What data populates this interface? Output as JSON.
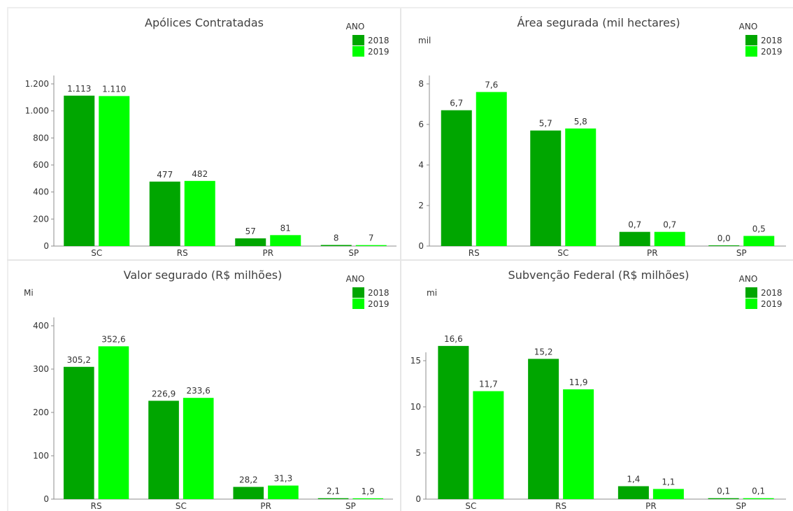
{
  "colors": {
    "y2018": "#00A600",
    "y2019": "#00FF00",
    "axis": "#8c8c8c",
    "text": "#333333"
  },
  "legend": {
    "title": "ANO",
    "items": [
      "2018",
      "2019"
    ]
  },
  "chart_data": [
    {
      "type": "bar",
      "title": "Apólices Contratadas",
      "unit_label": "",
      "categories": [
        "SC",
        "RS",
        "PR",
        "SP"
      ],
      "series": [
        {
          "name": "2018",
          "values": [
            1113,
            477,
            57,
            8
          ],
          "labels": [
            "1.113",
            "477",
            "57",
            "8"
          ]
        },
        {
          "name": "2019",
          "values": [
            1110,
            482,
            81,
            7
          ],
          "labels": [
            "1.110",
            "482",
            "81",
            "7"
          ]
        }
      ],
      "ylim": [
        0,
        1200
      ],
      "yticks": [
        0,
        200,
        400,
        600,
        800,
        1000,
        1200
      ],
      "ytick_labels": [
        "0",
        "200",
        "400",
        "600",
        "800",
        "1.000",
        "1.200"
      ],
      "legend_position": "top-right"
    },
    {
      "type": "bar",
      "title": "Área segurada (mil hectares)",
      "unit_label": "mil",
      "categories": [
        "RS",
        "SC",
        "PR",
        "SP"
      ],
      "series": [
        {
          "name": "2018",
          "values": [
            6.7,
            5.7,
            0.7,
            0.0
          ],
          "labels": [
            "6,7",
            "5,7",
            "0,7",
            "0,0"
          ]
        },
        {
          "name": "2019",
          "values": [
            7.6,
            5.8,
            0.7,
            0.5
          ],
          "labels": [
            "7,6",
            "5,8",
            "0,7",
            "0,5"
          ]
        }
      ],
      "ylim": [
        0,
        8
      ],
      "yticks": [
        0,
        2,
        4,
        6,
        8
      ],
      "ytick_labels": [
        "0",
        "2",
        "4",
        "6",
        "8"
      ],
      "legend_position": "top-right"
    },
    {
      "type": "bar",
      "title": "Valor segurado (R$ milhões)",
      "unit_label": "Mi",
      "categories": [
        "RS",
        "SC",
        "PR",
        "SP"
      ],
      "series": [
        {
          "name": "2018",
          "values": [
            305.2,
            226.9,
            28.2,
            2.1
          ],
          "labels": [
            "305,2",
            "226,9",
            "28,2",
            "2,1"
          ]
        },
        {
          "name": "2019",
          "values": [
            352.6,
            233.6,
            31.3,
            1.9
          ],
          "labels": [
            "352,6",
            "233,6",
            "31,3",
            "1,9"
          ]
        }
      ],
      "ylim": [
        0,
        400
      ],
      "yticks": [
        0,
        100,
        200,
        300,
        400
      ],
      "ytick_labels": [
        "0",
        "100",
        "200",
        "300",
        "400"
      ],
      "legend_position": "top-right"
    },
    {
      "type": "bar",
      "title": "Subvenção Federal (R$ milhões)",
      "unit_label": "mi",
      "categories": [
        "SC",
        "RS",
        "PR",
        "SP"
      ],
      "series": [
        {
          "name": "2018",
          "values": [
            16.6,
            15.2,
            1.4,
            0.1
          ],
          "labels": [
            "16,6",
            "15,2",
            "1,4",
            "0,1"
          ]
        },
        {
          "name": "2019",
          "values": [
            11.7,
            11.9,
            1.1,
            0.1
          ],
          "labels": [
            "11,7",
            "11,9",
            "1,1",
            "0,1"
          ]
        }
      ],
      "ylim": [
        0,
        15
      ],
      "yticks": [
        0,
        5,
        10,
        15
      ],
      "ytick_labels": [
        "0",
        "5",
        "10",
        "15"
      ],
      "legend_position": "top-right"
    }
  ]
}
